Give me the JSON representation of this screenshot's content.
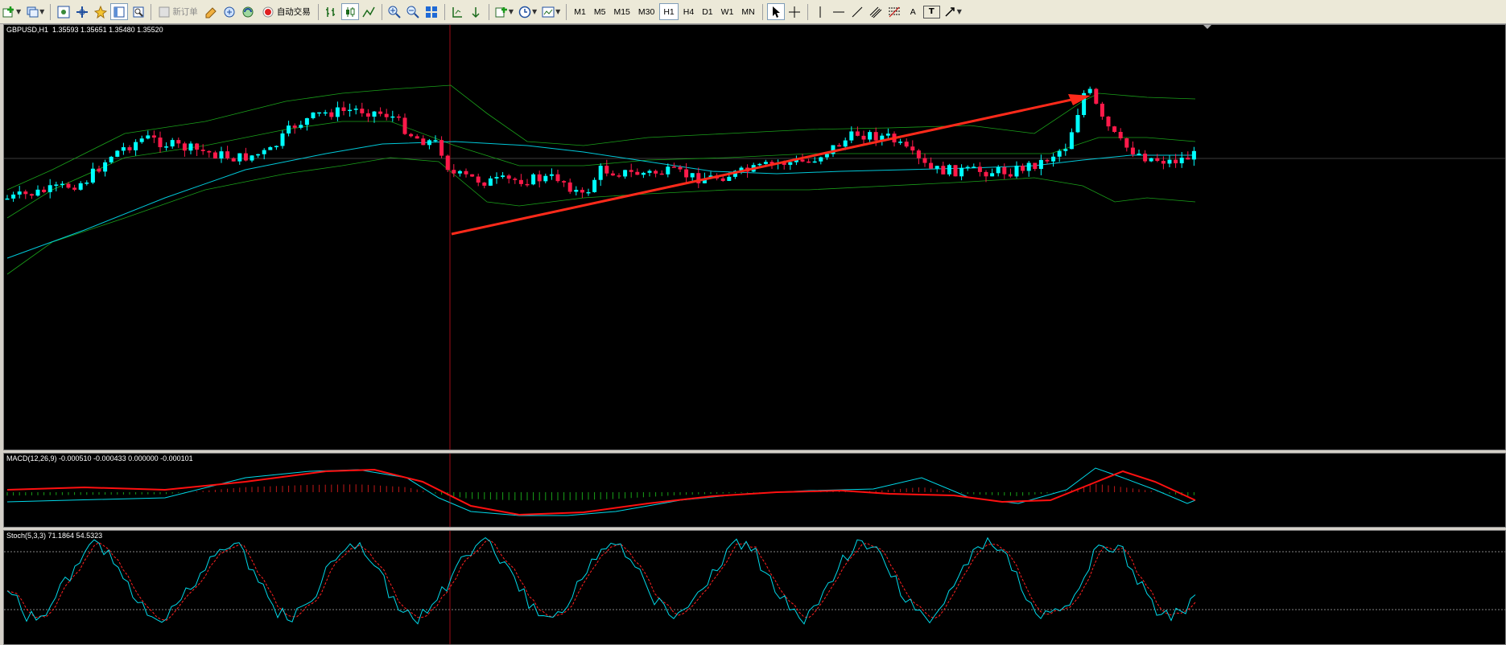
{
  "toolbar": {
    "new_order": "新订单",
    "auto_trading": "自动交易",
    "timeframes": [
      "M1",
      "M5",
      "M15",
      "M30",
      "H1",
      "H4",
      "D1",
      "W1",
      "MN"
    ],
    "active_timeframe": "H1",
    "text_tool": "A",
    "label_tool": "T"
  },
  "main_chart": {
    "header": "GBPUSD,H1  1.35593 1.35651 1.35480 1.35520",
    "background": "#000000",
    "bull_color": "#00ffff",
    "bear_color": "#ff1a4a",
    "bands_color": "#1aa01a",
    "ma_color": "#00c8d8",
    "arrow_color": "#ff2a1a"
  },
  "macd": {
    "label": "MACD(12,26,9) -0.000510 -0.000433 0.000000 -0.000101",
    "macd_color": "#00d8e8",
    "signal_color": "#ff1010",
    "hist_pos_color": "#c01818",
    "hist_neg_color": "#18a018"
  },
  "stoch": {
    "label": "Stoch(5,3,3) 71.1864 54.5323",
    "main_color": "#00d8e8",
    "signal_color": "#ff2020"
  }
}
